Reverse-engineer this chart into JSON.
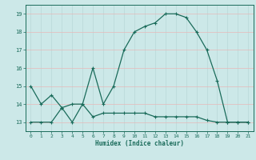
{
  "xlabel": "Humidex (Indice chaleur)",
  "line1_x": [
    0,
    1,
    2,
    3,
    4,
    5,
    6,
    7,
    8,
    9,
    10,
    11,
    12,
    13,
    14,
    15,
    16,
    17,
    18,
    19,
    20,
    21
  ],
  "line1_y": [
    15,
    14,
    14.5,
    13.8,
    14,
    14,
    16,
    14,
    15,
    17,
    18,
    18.3,
    18.5,
    19,
    19,
    18.8,
    18,
    17,
    15.3,
    13,
    13,
    13
  ],
  "line2_x": [
    0,
    1,
    2,
    3,
    4,
    5,
    6,
    7,
    8,
    9,
    10,
    11,
    12,
    13,
    14,
    15,
    16,
    17,
    18,
    19,
    20,
    21
  ],
  "line2_y": [
    13,
    13,
    13,
    13.8,
    13,
    14,
    13.3,
    13.5,
    13.5,
    13.5,
    13.5,
    13.5,
    13.3,
    13.3,
    13.3,
    13.3,
    13.3,
    13.1,
    13,
    13,
    13,
    13
  ],
  "color": "#1a6b5a",
  "bg_color": "#cce8e8",
  "grid_color_h": "#e8b8b8",
  "grid_color_v": "#b8d8d8",
  "ylim": [
    12.5,
    19.5
  ],
  "xlim": [
    -0.5,
    21.5
  ],
  "yticks": [
    13,
    14,
    15,
    16,
    17,
    18,
    19
  ],
  "xticks": [
    0,
    1,
    2,
    3,
    4,
    5,
    6,
    7,
    8,
    9,
    10,
    11,
    12,
    13,
    14,
    15,
    16,
    17,
    18,
    19,
    20,
    21
  ]
}
